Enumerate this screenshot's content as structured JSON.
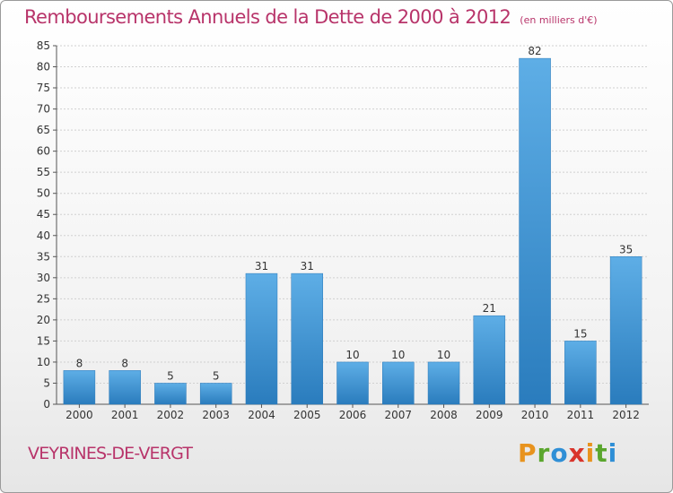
{
  "header": {
    "title": "Remboursements Annuels de la Dette de 2000 à 2012",
    "unit": "(en milliers d'€)"
  },
  "footer": {
    "commune": "VEYRINES-DE-VERGT",
    "logo_text": "Proxiti",
    "logo_colors": [
      "#e8931e",
      "#5aa62d",
      "#2f8fd6",
      "#d9342b",
      "#e8931e",
      "#5aa62d",
      "#2f8fd6"
    ]
  },
  "colors": {
    "title": "#b8346a",
    "bar_light": "#5eaee6",
    "bar_dark": "#2a7cbd",
    "grid": "#d0d0d0",
    "axis": "#555555"
  },
  "chart_data": {
    "type": "bar",
    "title": "Remboursements Annuels de la Dette de 2000 à 2012",
    "subtitle": "(en milliers d'€)",
    "categories": [
      "2000",
      "2001",
      "2002",
      "2003",
      "2004",
      "2005",
      "2006",
      "2007",
      "2008",
      "2009",
      "2010",
      "2011",
      "2012"
    ],
    "values": [
      8,
      8,
      5,
      5,
      31,
      31,
      10,
      10,
      10,
      21,
      82,
      15,
      35
    ],
    "ylim": [
      0,
      85
    ],
    "yticks": [
      0,
      5,
      10,
      15,
      20,
      25,
      30,
      35,
      40,
      45,
      50,
      55,
      60,
      65,
      70,
      75,
      80,
      85
    ],
    "grid": true,
    "data_labels": true
  }
}
